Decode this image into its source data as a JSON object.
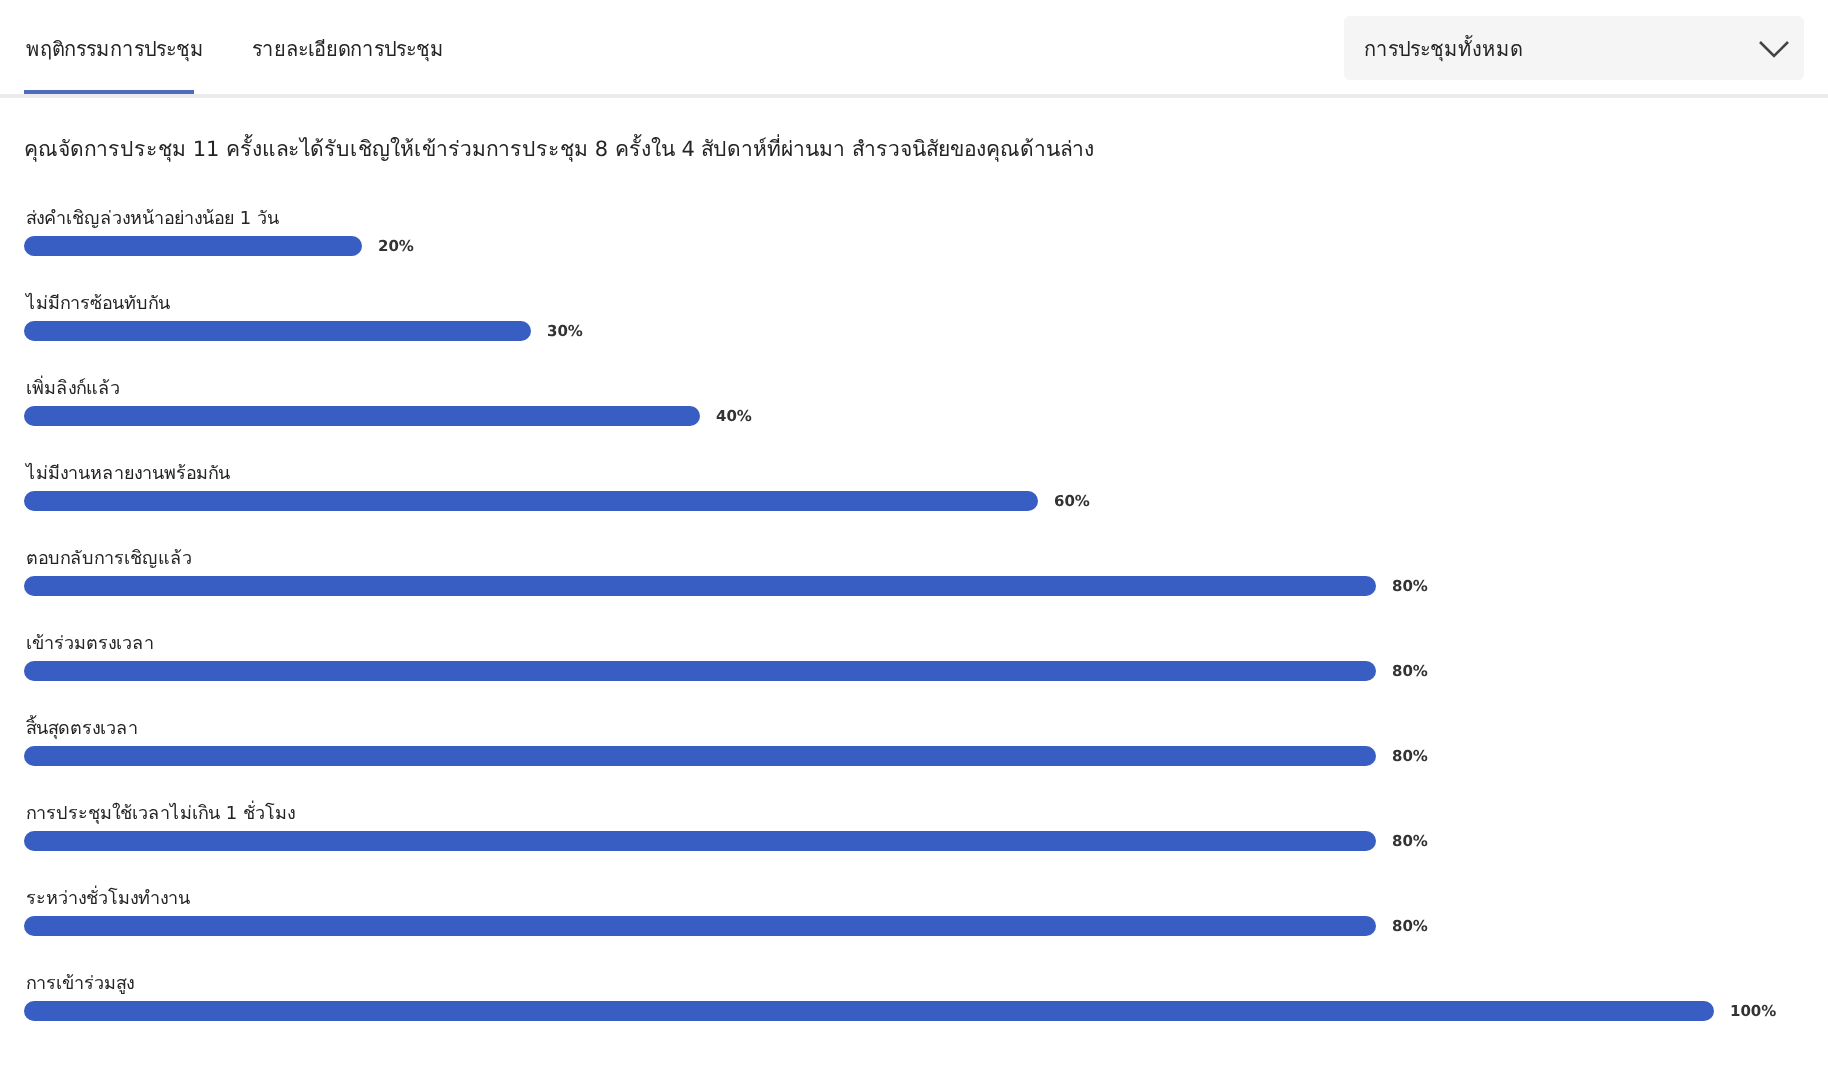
{
  "chart_data": {
    "type": "bar",
    "orientation": "horizontal",
    "title": "คุณจัดการประชุม 11 ครั้งและได้รับเชิญให้เข้าร่วมการประชุม 8 ครั้งใน 4 สัปดาห์ที่ผ่านมา สำรวจนิสัยของคุณด้านล่าง",
    "annotations": [
      "พฤติกรรมการประชุม",
      "รายละเอียดการประชุม",
      "การประชุมทั้งหมด"
    ],
    "categories": [
      "ส่งคำเชิญล่วงหน้าอย่างน้อย 1 วัน",
      "ไม่มีการซ้อนทับกัน",
      "เพิ่มลิงก์แล้ว",
      "ไม่มีงานหลายงานพร้อมกัน",
      "ตอบกลับการเชิญแล้ว",
      "เข้าร่วมตรงเวลา",
      "สิ้นสุดตรงเวลา",
      "การประชุมใช้เวลาไม่เกิน 1 ชั่วโมง",
      "ระหว่างชั่วโมงทำงาน",
      "การเข้าร่วมสูง"
    ],
    "values": [
      20,
      30,
      40,
      60,
      80,
      80,
      80,
      80,
      80,
      100
    ],
    "value_labels": [
      "20%",
      "30%",
      "40%",
      "60%",
      "80%",
      "80%",
      "80%",
      "80%",
      "80%",
      "100%"
    ],
    "color": "#385ec4"
  }
}
